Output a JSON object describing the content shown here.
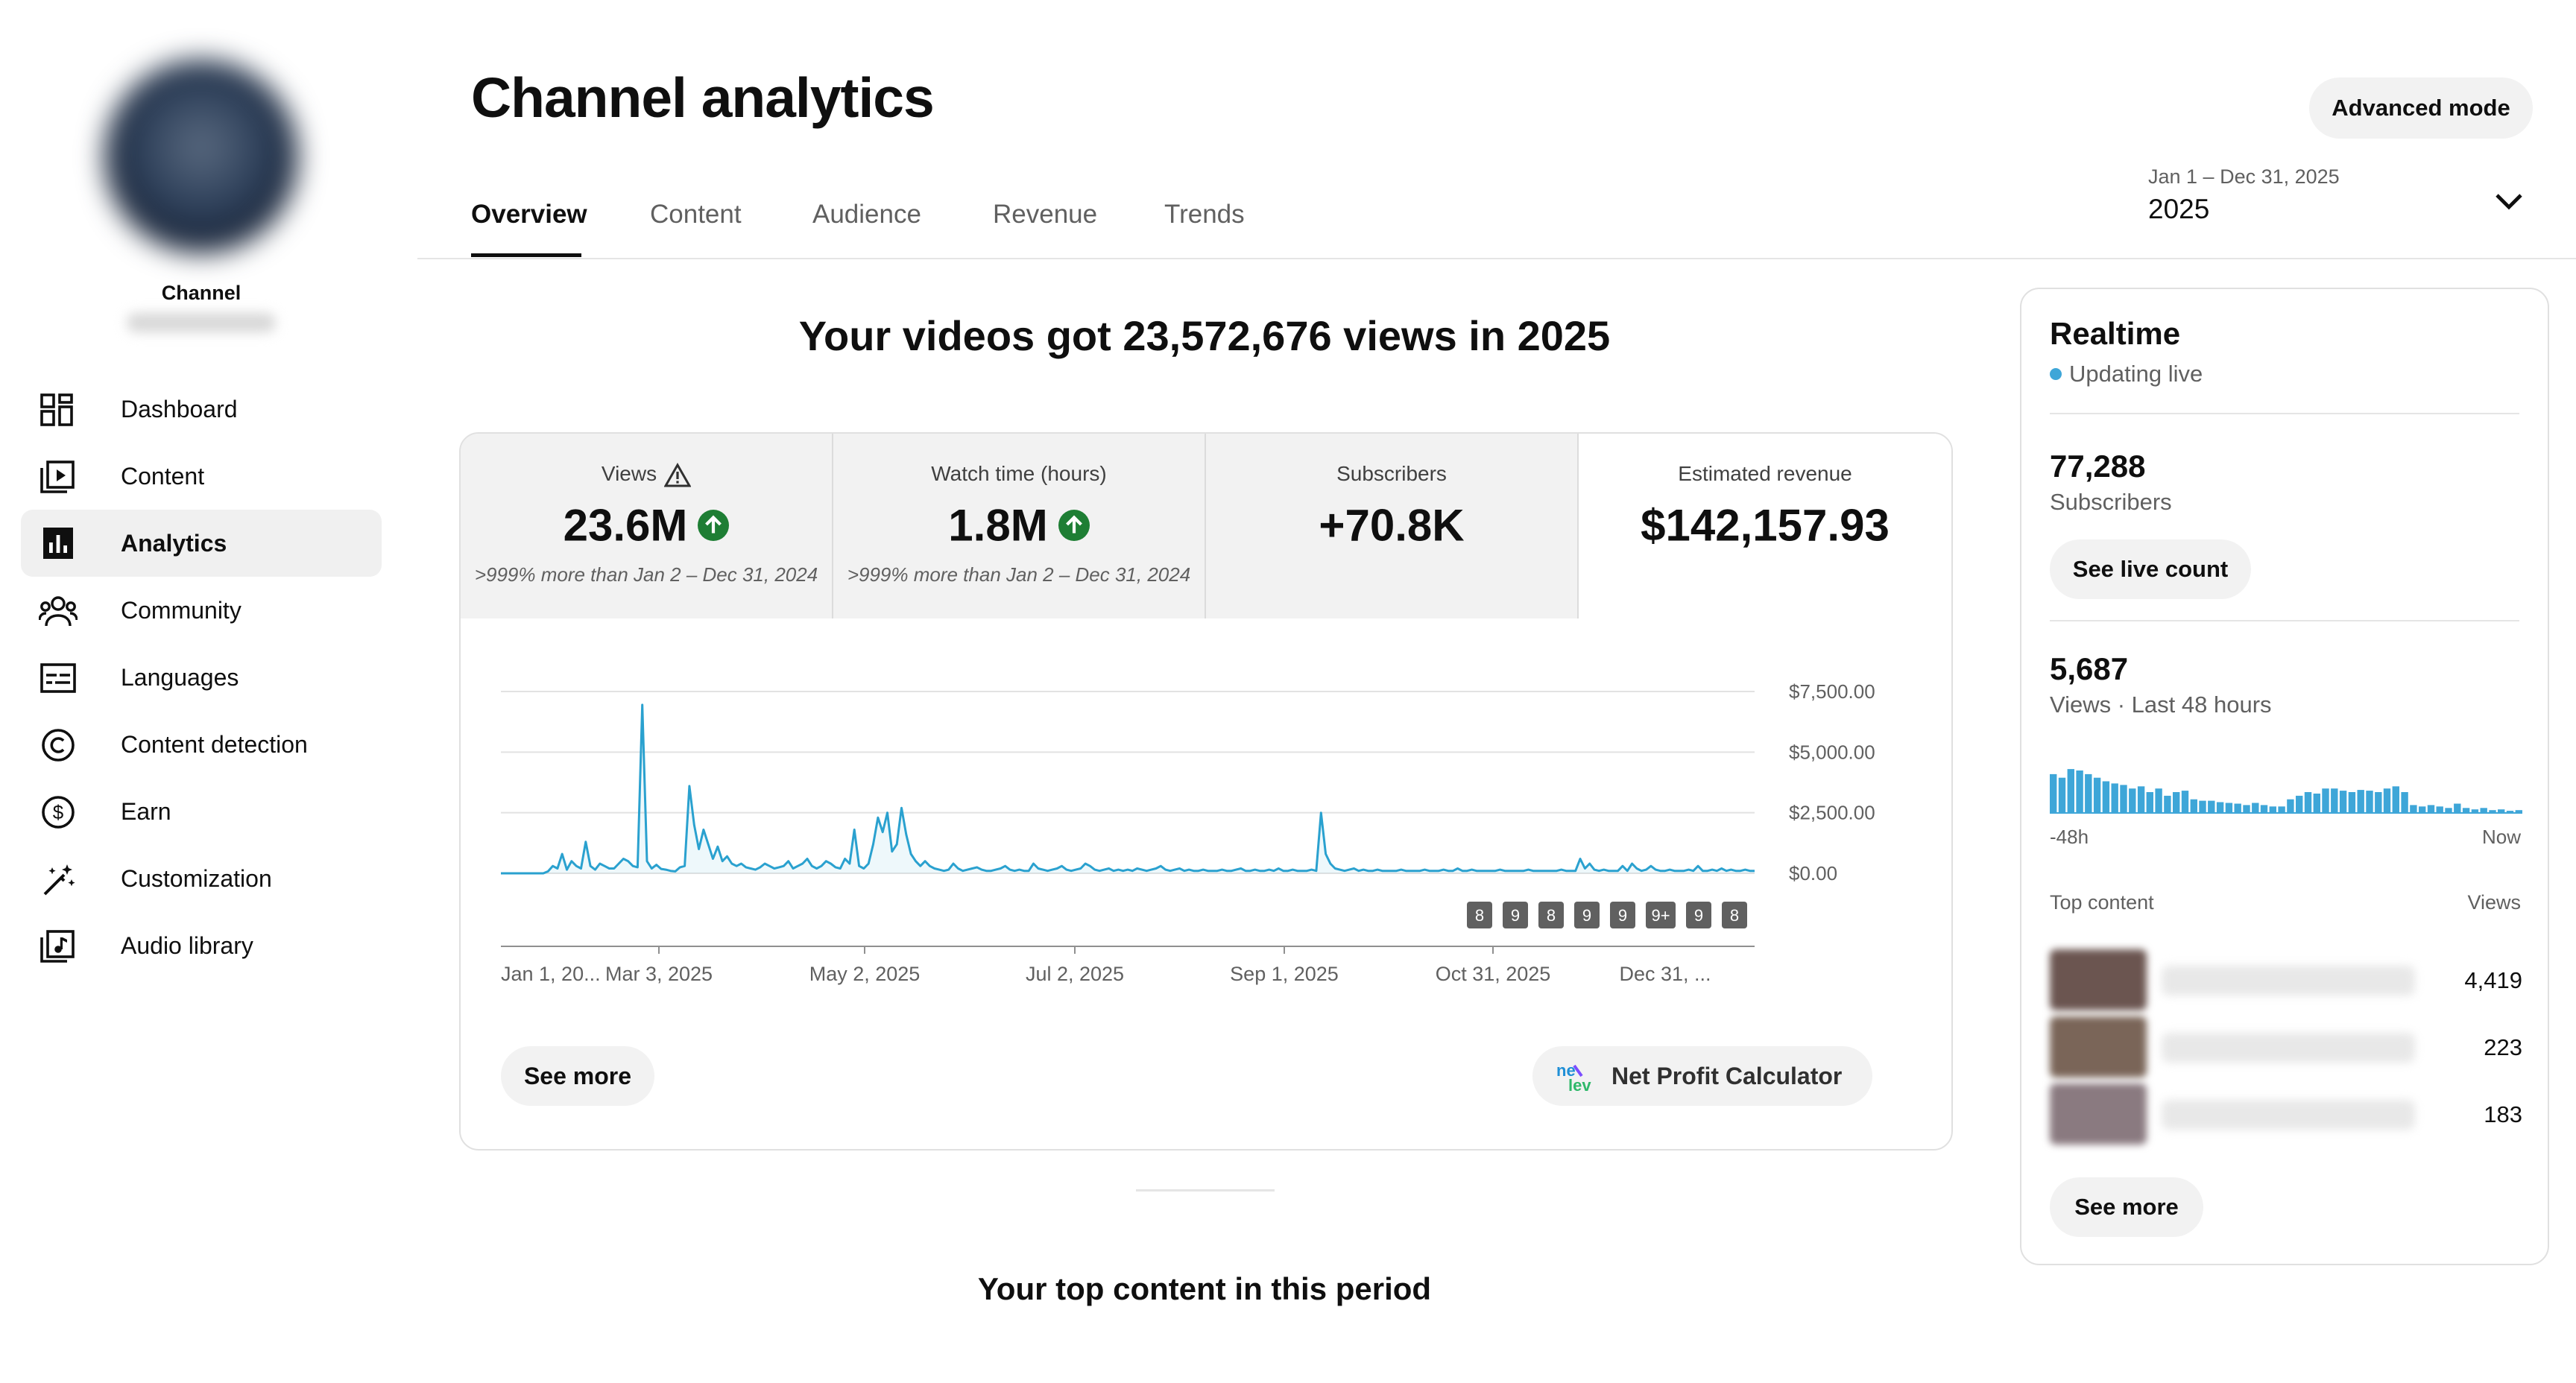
{
  "sidebar": {
    "channel_name": "Channel",
    "items": [
      {
        "label": "Dashboard",
        "icon": "dashboard-icon"
      },
      {
        "label": "Content",
        "icon": "content-icon"
      },
      {
        "label": "Analytics",
        "icon": "analytics-icon",
        "active": true
      },
      {
        "label": "Community",
        "icon": "community-icon"
      },
      {
        "label": "Languages",
        "icon": "languages-icon"
      },
      {
        "label": "Content detection",
        "icon": "copyright-icon"
      },
      {
        "label": "Earn",
        "icon": "dollar-icon"
      },
      {
        "label": "Customization",
        "icon": "magic-wand-icon"
      },
      {
        "label": "Audio library",
        "icon": "audio-library-icon"
      }
    ]
  },
  "header": {
    "title": "Channel analytics",
    "advanced_mode": "Advanced mode",
    "tabs": [
      "Overview",
      "Content",
      "Audience",
      "Revenue",
      "Trends"
    ],
    "active_tab": "Overview",
    "date_range": "Jan 1 – Dec 31, 2025",
    "date_value": "2025"
  },
  "main": {
    "headline": "Your videos got 23,572,676 views in 2025",
    "metrics": [
      {
        "label": "Views",
        "value": "23.6M",
        "compare": ">999% more than Jan 2 – Dec 31, 2024",
        "trend": "up",
        "warning": true
      },
      {
        "label": "Watch time (hours)",
        "value": "1.8M",
        "compare": ">999% more than Jan 2 – Dec 31, 2024",
        "trend": "up"
      },
      {
        "label": "Subscribers",
        "value": "+70.8K",
        "compare": ""
      },
      {
        "label": "Estimated revenue",
        "value": "$142,157.93",
        "compare": "",
        "selected": true
      }
    ],
    "see_more": "See more",
    "net_profit": "Net Profit Calculator",
    "top_content_heading": "Your top content in this period"
  },
  "chart_data": {
    "type": "line",
    "series": [
      {
        "values": [
          0,
          0,
          0,
          0,
          0,
          0,
          0,
          0,
          0,
          0,
          80,
          300,
          200,
          800,
          150,
          500,
          300,
          200,
          1300,
          300,
          150,
          400,
          300,
          200,
          200,
          400,
          600,
          500,
          300,
          250,
          6950,
          500,
          200,
          350,
          180,
          150,
          100,
          80,
          250,
          300,
          3600,
          2000,
          1000,
          1800,
          1200,
          600,
          1100,
          500,
          700,
          400,
          300,
          400,
          250,
          200,
          150,
          250,
          400,
          300,
          200,
          250,
          300,
          500,
          200,
          300,
          400,
          600,
          300,
          200,
          300,
          500,
          400,
          250,
          200,
          600,
          400,
          1800,
          300,
          200,
          400,
          1200,
          2300,
          1700,
          2500,
          900,
          1200,
          2700,
          1600,
          800,
          500,
          300,
          500,
          300,
          200,
          150,
          100,
          150,
          400,
          200,
          100,
          150,
          200,
          250,
          150,
          100,
          100,
          150,
          200,
          300,
          150,
          100,
          150,
          100,
          100,
          400,
          200,
          150,
          100,
          150,
          200,
          300,
          150,
          100,
          150,
          200,
          400,
          300,
          150,
          100,
          150,
          200,
          100,
          150,
          100,
          150,
          100,
          200,
          150,
          100,
          150,
          200,
          300,
          150,
          100,
          150,
          200,
          100,
          150,
          100,
          100,
          150,
          100,
          100,
          100,
          150,
          100,
          100,
          150,
          200,
          100,
          100,
          150,
          100,
          100,
          150,
          100,
          200,
          100,
          100,
          150,
          100,
          100,
          100,
          150,
          100,
          2500,
          800,
          400,
          200,
          150,
          100,
          150,
          200,
          100,
          150,
          100,
          100,
          150,
          100,
          100,
          100,
          100,
          150,
          100,
          100,
          100,
          100,
          150,
          100,
          100,
          100,
          150,
          100,
          100,
          200,
          100,
          100,
          150,
          100,
          100,
          100,
          100,
          100,
          150,
          100,
          100,
          100,
          100,
          100,
          150,
          100,
          100,
          100,
          100,
          100,
          100,
          150,
          100,
          100,
          100,
          600,
          200,
          400,
          150,
          100,
          150,
          100,
          100,
          100,
          300,
          100,
          400,
          200,
          100,
          150,
          300,
          150,
          100,
          100,
          150,
          100,
          100,
          100,
          150,
          100,
          300,
          100,
          100,
          150,
          100,
          200,
          100,
          150,
          100,
          100,
          150,
          100,
          100
        ]
      }
    ],
    "x_ticks": [
      "Jan 1, 20...",
      "Mar 3, 2025",
      "May 2, 2025",
      "Jul 2, 2025",
      "Sep 1, 2025",
      "Oct 31, 2025",
      "Dec 31, ..."
    ],
    "y_ticks": [
      "$0.00",
      "$2,500.00",
      "$5,000.00",
      "$7,500.00"
    ],
    "ylim": [
      0,
      7500
    ],
    "event_markers": [
      "8",
      "9",
      "8",
      "9",
      "9",
      "9+",
      "9",
      "8"
    ],
    "color": "#2aa1cf"
  },
  "realtime": {
    "title": "Realtime",
    "status": "Updating live",
    "subscribers_value": "77,288",
    "subscribers_label": "Subscribers",
    "see_live_count": "See live count",
    "views_value": "5,687",
    "views_label": "Views · Last 48 hours",
    "mini_left": "-48h",
    "mini_right": "Now",
    "mini_bars": [
      0.55,
      0.5,
      0.62,
      0.6,
      0.55,
      0.5,
      0.45,
      0.42,
      0.4,
      0.35,
      0.38,
      0.3,
      0.35,
      0.25,
      0.3,
      0.32,
      0.2,
      0.18,
      0.18,
      0.16,
      0.15,
      0.14,
      0.12,
      0.15,
      0.12,
      0.1,
      0.1,
      0.2,
      0.25,
      0.3,
      0.28,
      0.35,
      0.35,
      0.32,
      0.3,
      0.33,
      0.32,
      0.3,
      0.35,
      0.38,
      0.3,
      0.12,
      0.1,
      0.12,
      0.1,
      0.08,
      0.14,
      0.08,
      0.06,
      0.08,
      0.05,
      0.06,
      0.04,
      0.05
    ],
    "top_content_label": "Top content",
    "views_header": "Views",
    "top_content": [
      {
        "views": "4,419"
      },
      {
        "views": "223"
      },
      {
        "views": "183"
      }
    ],
    "see_more": "See more"
  }
}
